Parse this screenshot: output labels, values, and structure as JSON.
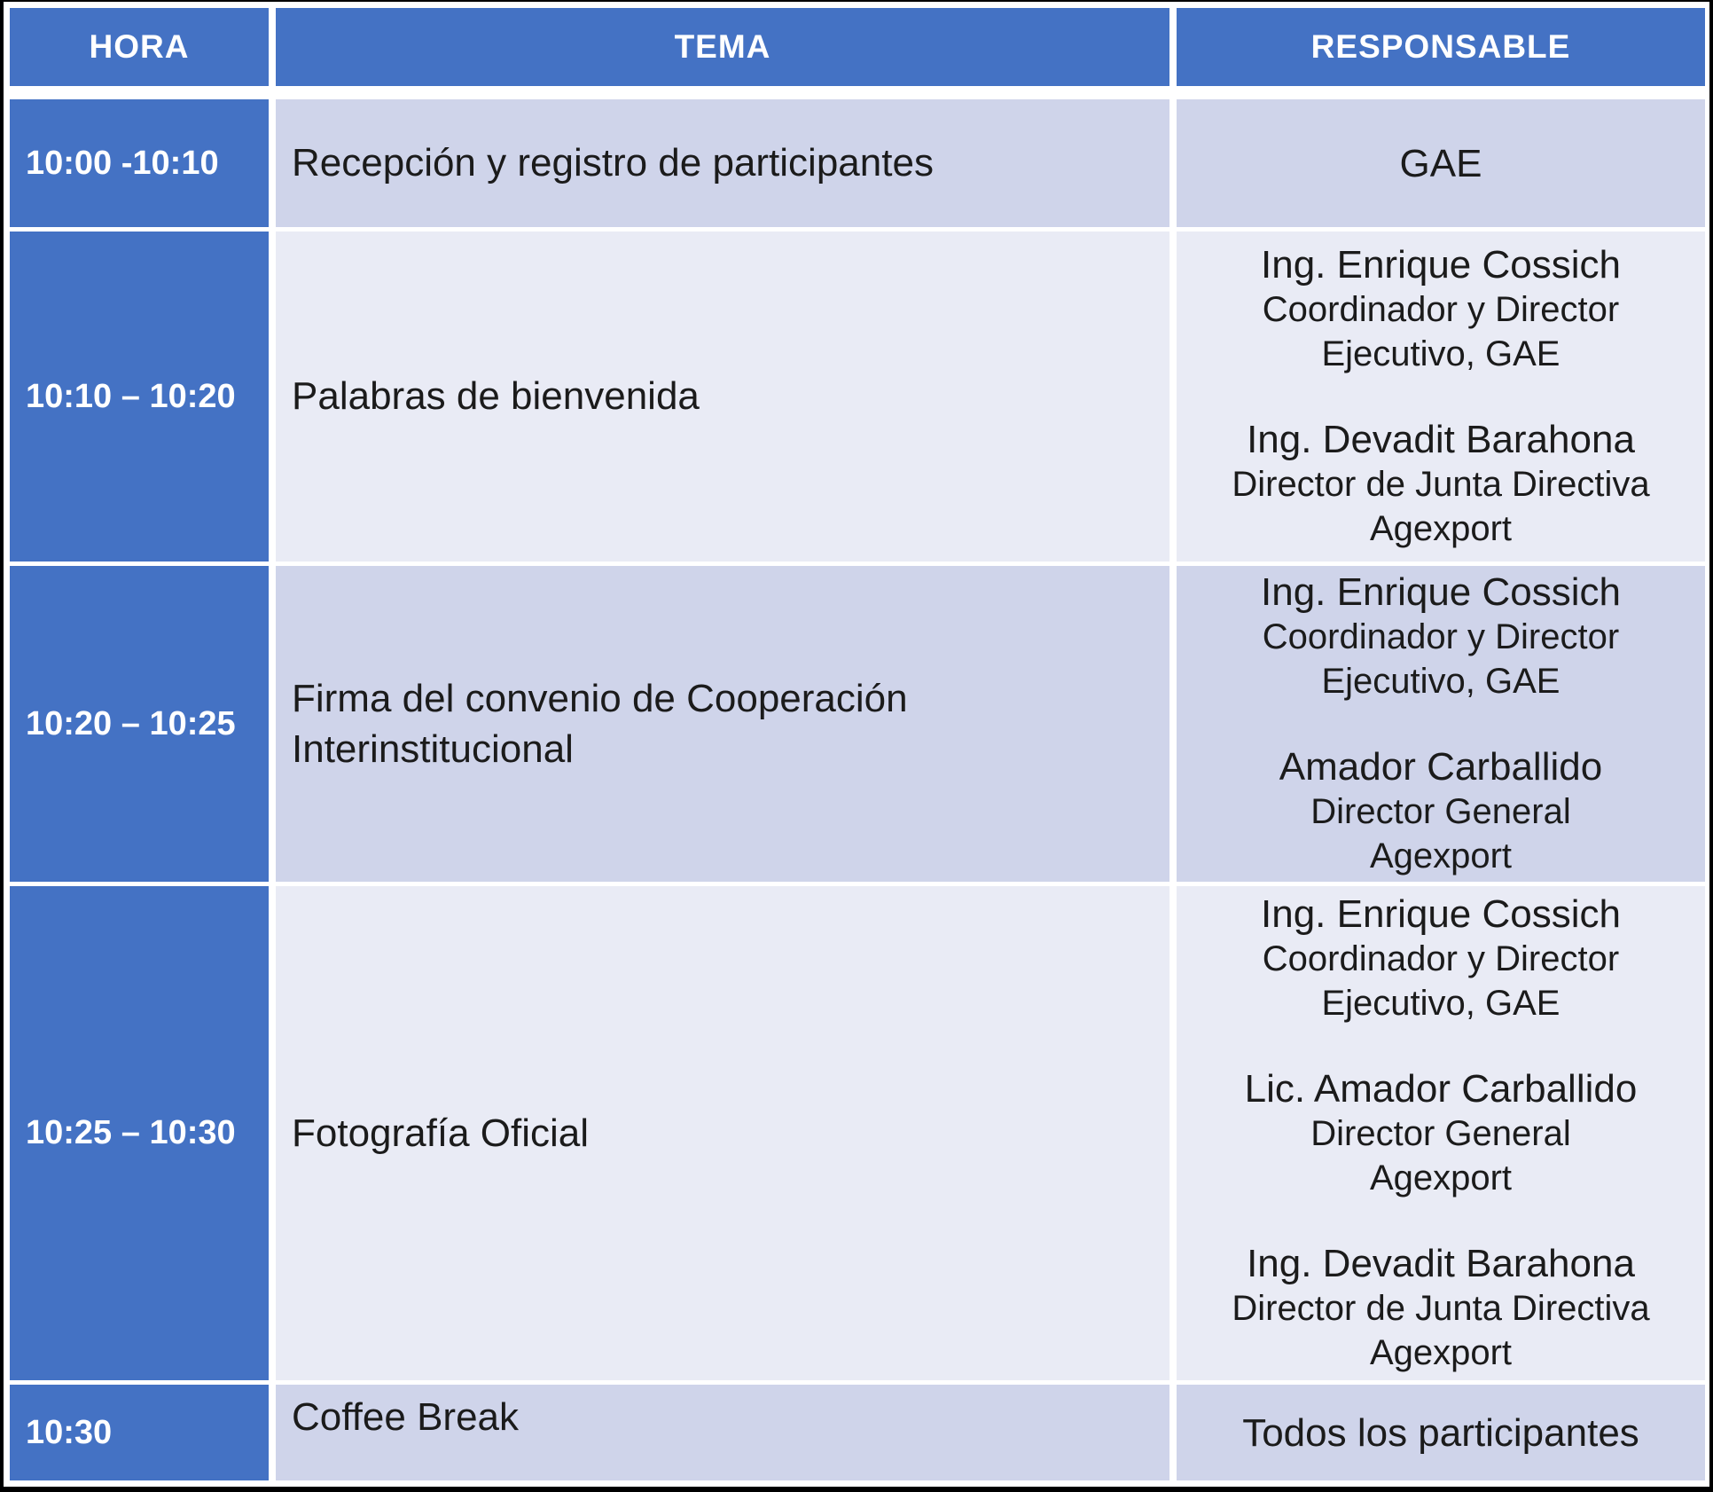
{
  "colors": {
    "header_blue": "#4472C4",
    "row_dark": "#CFD4EA",
    "row_light": "#E9EBF5",
    "header_text": "#FFFFFF",
    "body_text": "#1B1B1B"
  },
  "table": {
    "headers": [
      {
        "label": "HORA"
      },
      {
        "label": "TEMA"
      },
      {
        "label": "RESPONSABLE"
      }
    ],
    "rows": [
      {
        "time": "10:00 -10:10",
        "tema": "Recepción y registro de participantes",
        "shade": "dark",
        "tema_valign": "center",
        "responsable": [
          {
            "name": "GAE",
            "titles": []
          }
        ]
      },
      {
        "time": "10:10 – 10:20",
        "tema": "Palabras de bienvenida",
        "shade": "light",
        "tema_valign": "center",
        "responsable": [
          {
            "name": "Ing. Enrique Cossich",
            "titles": [
              "Coordinador y Director",
              "Ejecutivo, GAE"
            ]
          },
          {
            "name": "Ing. Devadit Barahona",
            "titles": [
              "Director de Junta Directiva",
              "Agexport"
            ]
          }
        ]
      },
      {
        "time": "10:20 – 10:25",
        "tema": "Firma del convenio de Cooperación Interinstitucional",
        "shade": "dark",
        "tema_valign": "center",
        "responsable": [
          {
            "name": "Ing. Enrique Cossich",
            "titles": [
              "Coordinador y Director",
              "Ejecutivo, GAE"
            ]
          },
          {
            "name": "Amador Carballido",
            "titles": [
              "Director General",
              "Agexport"
            ]
          }
        ]
      },
      {
        "time": "10:25 – 10:30",
        "tema": "Fotografía Oficial",
        "shade": "light",
        "tema_valign": "center",
        "responsable": [
          {
            "name": "Ing. Enrique Cossich",
            "titles": [
              "Coordinador y Director",
              "Ejecutivo, GAE"
            ]
          },
          {
            "name": "Lic. Amador Carballido",
            "titles": [
              "Director General",
              "Agexport"
            ]
          },
          {
            "name": "Ing. Devadit Barahona",
            "titles": [
              "Director de Junta Directiva",
              "Agexport"
            ]
          }
        ]
      },
      {
        "time": "10:30",
        "tema": "Coffee Break",
        "shade": "dark",
        "tema_valign": "top",
        "responsable": [
          {
            "name": "Todos los participantes",
            "titles": []
          }
        ]
      }
    ]
  }
}
